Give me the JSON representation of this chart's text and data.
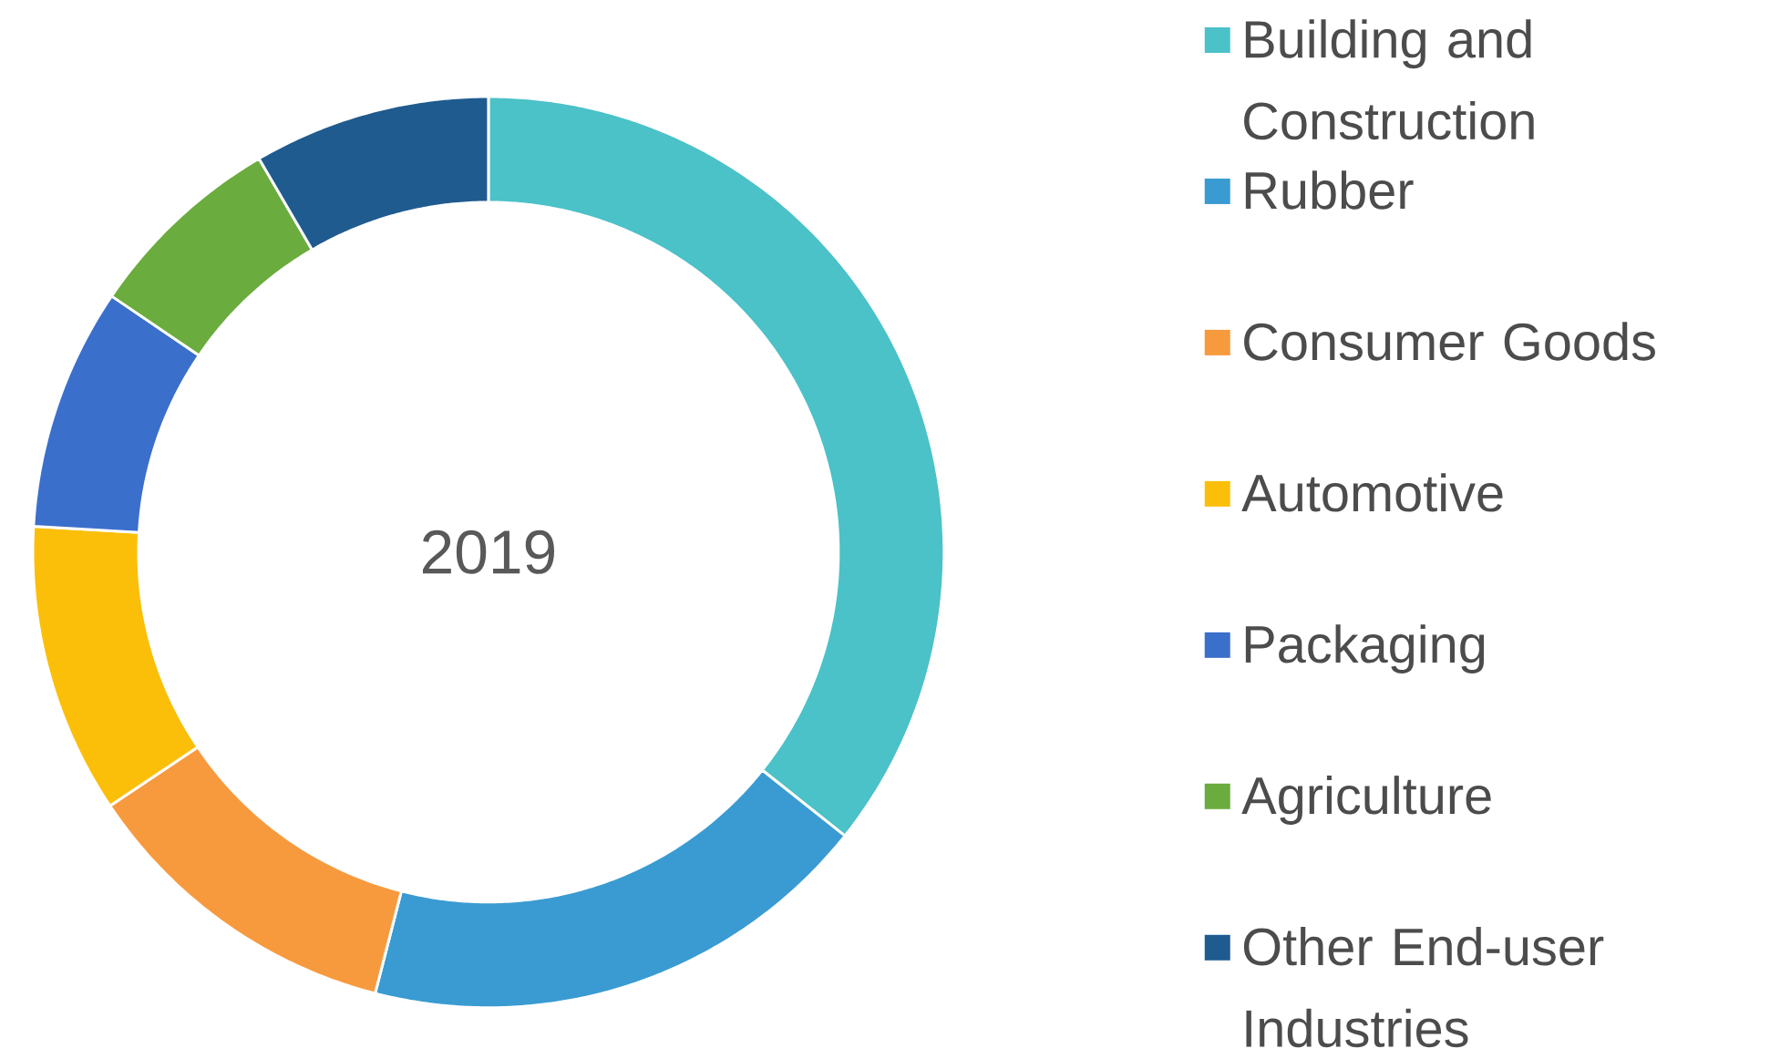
{
  "chart_data": {
    "type": "donut",
    "title": "2019",
    "categories": [
      "Building and Construction",
      "Rubber",
      "Consumer Goods",
      "Automotive",
      "Packaging",
      "Agriculture",
      "Other End-user Industries"
    ],
    "values": [
      35.7,
      18.3,
      11.6,
      10.3,
      8.6,
      7.1,
      8.4
    ],
    "colors": [
      "#4bc1c8",
      "#3a9bd2",
      "#f79a3e",
      "#fbbf0a",
      "#3b6fcc",
      "#6aac3d",
      "#1f5b8f"
    ],
    "legend": "right"
  }
}
